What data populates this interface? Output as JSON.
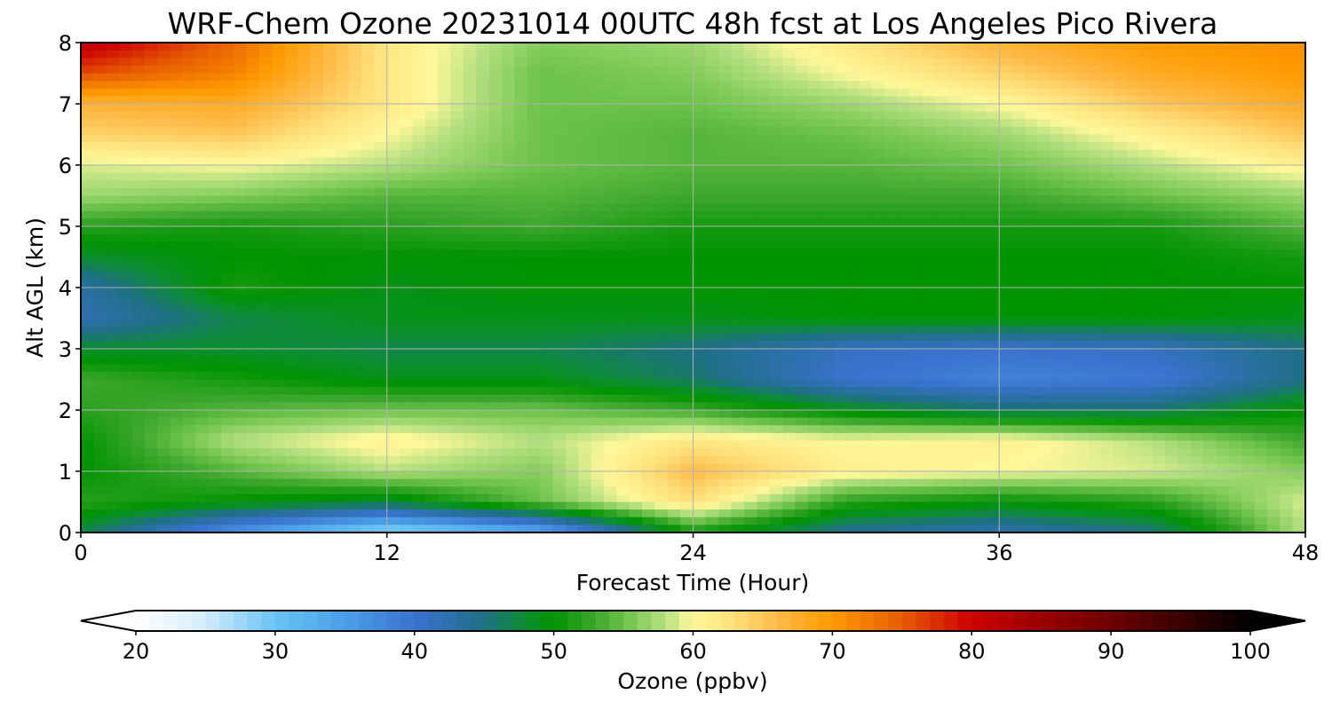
{
  "chart_data": {
    "type": "heatmap",
    "title": "WRF-Chem Ozone  20231014 00UTC 48h fcst at Los Angeles Pico Rivera",
    "xlabel": "Forecast Time (Hour)",
    "ylabel": "Alt AGL (km)",
    "xlim": [
      0,
      48
    ],
    "ylim": [
      0,
      8
    ],
    "x_ticks": [
      "0",
      "12",
      "24",
      "36",
      "48"
    ],
    "y_ticks": [
      "0",
      "1",
      "2",
      "3",
      "4",
      "5",
      "6",
      "7",
      "8"
    ],
    "grid": true,
    "x": [
      0,
      6,
      12,
      18,
      24,
      30,
      36,
      42,
      48
    ],
    "y": [
      0,
      0.5,
      1,
      1.5,
      2,
      2.5,
      3,
      3.5,
      4,
      4.5,
      5,
      5.5,
      6,
      6.5,
      7,
      7.5,
      8
    ],
    "z": [
      [
        47,
        36,
        27,
        33,
        51,
        44,
        42,
        45,
        58
      ],
      [
        52,
        50,
        48,
        55,
        63,
        52,
        50,
        52,
        59
      ],
      [
        50,
        54,
        58,
        56,
        66,
        61,
        60,
        59,
        56
      ],
      [
        50,
        58,
        61,
        58,
        62,
        60,
        61,
        58,
        53
      ],
      [
        52,
        54,
        55,
        55,
        53,
        49,
        46,
        46,
        50
      ],
      [
        53,
        51,
        49,
        49,
        46,
        40,
        38,
        39,
        45
      ],
      [
        48,
        48,
        47,
        47,
        45,
        41,
        40,
        41,
        45
      ],
      [
        42,
        47,
        49,
        49,
        49,
        50,
        50,
        50,
        49
      ],
      [
        43,
        51,
        49,
        50,
        50,
        50,
        50,
        50,
        50
      ],
      [
        48,
        50,
        50,
        50,
        50,
        50,
        50,
        50,
        51
      ],
      [
        52,
        51,
        52,
        53,
        51,
        51,
        51,
        51,
        54
      ],
      [
        57,
        56,
        54,
        54,
        53,
        53,
        53,
        55,
        57
      ],
      [
        59,
        60,
        58,
        55,
        54,
        54,
        55,
        58,
        61
      ],
      [
        64,
        65,
        60,
        55,
        54,
        55,
        57,
        61,
        65
      ],
      [
        67,
        68,
        62,
        55,
        55,
        57,
        60,
        65,
        68
      ],
      [
        76,
        72,
        62,
        55,
        56,
        60,
        64,
        68,
        70
      ],
      [
        82,
        74,
        62,
        56,
        57,
        62,
        67,
        70,
        71
      ]
    ],
    "colorbar": {
      "label": "Ozone  (ppbv)",
      "min": 20,
      "max": 100,
      "ticks": [
        "20",
        "30",
        "40",
        "50",
        "60",
        "70",
        "80",
        "90",
        "100"
      ],
      "extend": "both",
      "stops": [
        {
          "v": 20,
          "c": "#ffffff"
        },
        {
          "v": 25,
          "c": "#d2ecfa"
        },
        {
          "v": 30,
          "c": "#68c4f5"
        },
        {
          "v": 35,
          "c": "#4b9fe6"
        },
        {
          "v": 40,
          "c": "#3a72cf"
        },
        {
          "v": 45,
          "c": "#1f6f86"
        },
        {
          "v": 48,
          "c": "#0b8e2e"
        },
        {
          "v": 50,
          "c": "#009300"
        },
        {
          "v": 53,
          "c": "#3ea72e"
        },
        {
          "v": 55,
          "c": "#6cc24a"
        },
        {
          "v": 58,
          "c": "#b5e080"
        },
        {
          "v": 60,
          "c": "#fff89a"
        },
        {
          "v": 63,
          "c": "#ffdf7a"
        },
        {
          "v": 66,
          "c": "#ffbb48"
        },
        {
          "v": 70,
          "c": "#ff9a00"
        },
        {
          "v": 75,
          "c": "#e65c00"
        },
        {
          "v": 80,
          "c": "#cc0000"
        },
        {
          "v": 85,
          "c": "#990000"
        },
        {
          "v": 90,
          "c": "#6e0000"
        },
        {
          "v": 95,
          "c": "#3a0000"
        },
        {
          "v": 100,
          "c": "#000000"
        }
      ]
    }
  }
}
